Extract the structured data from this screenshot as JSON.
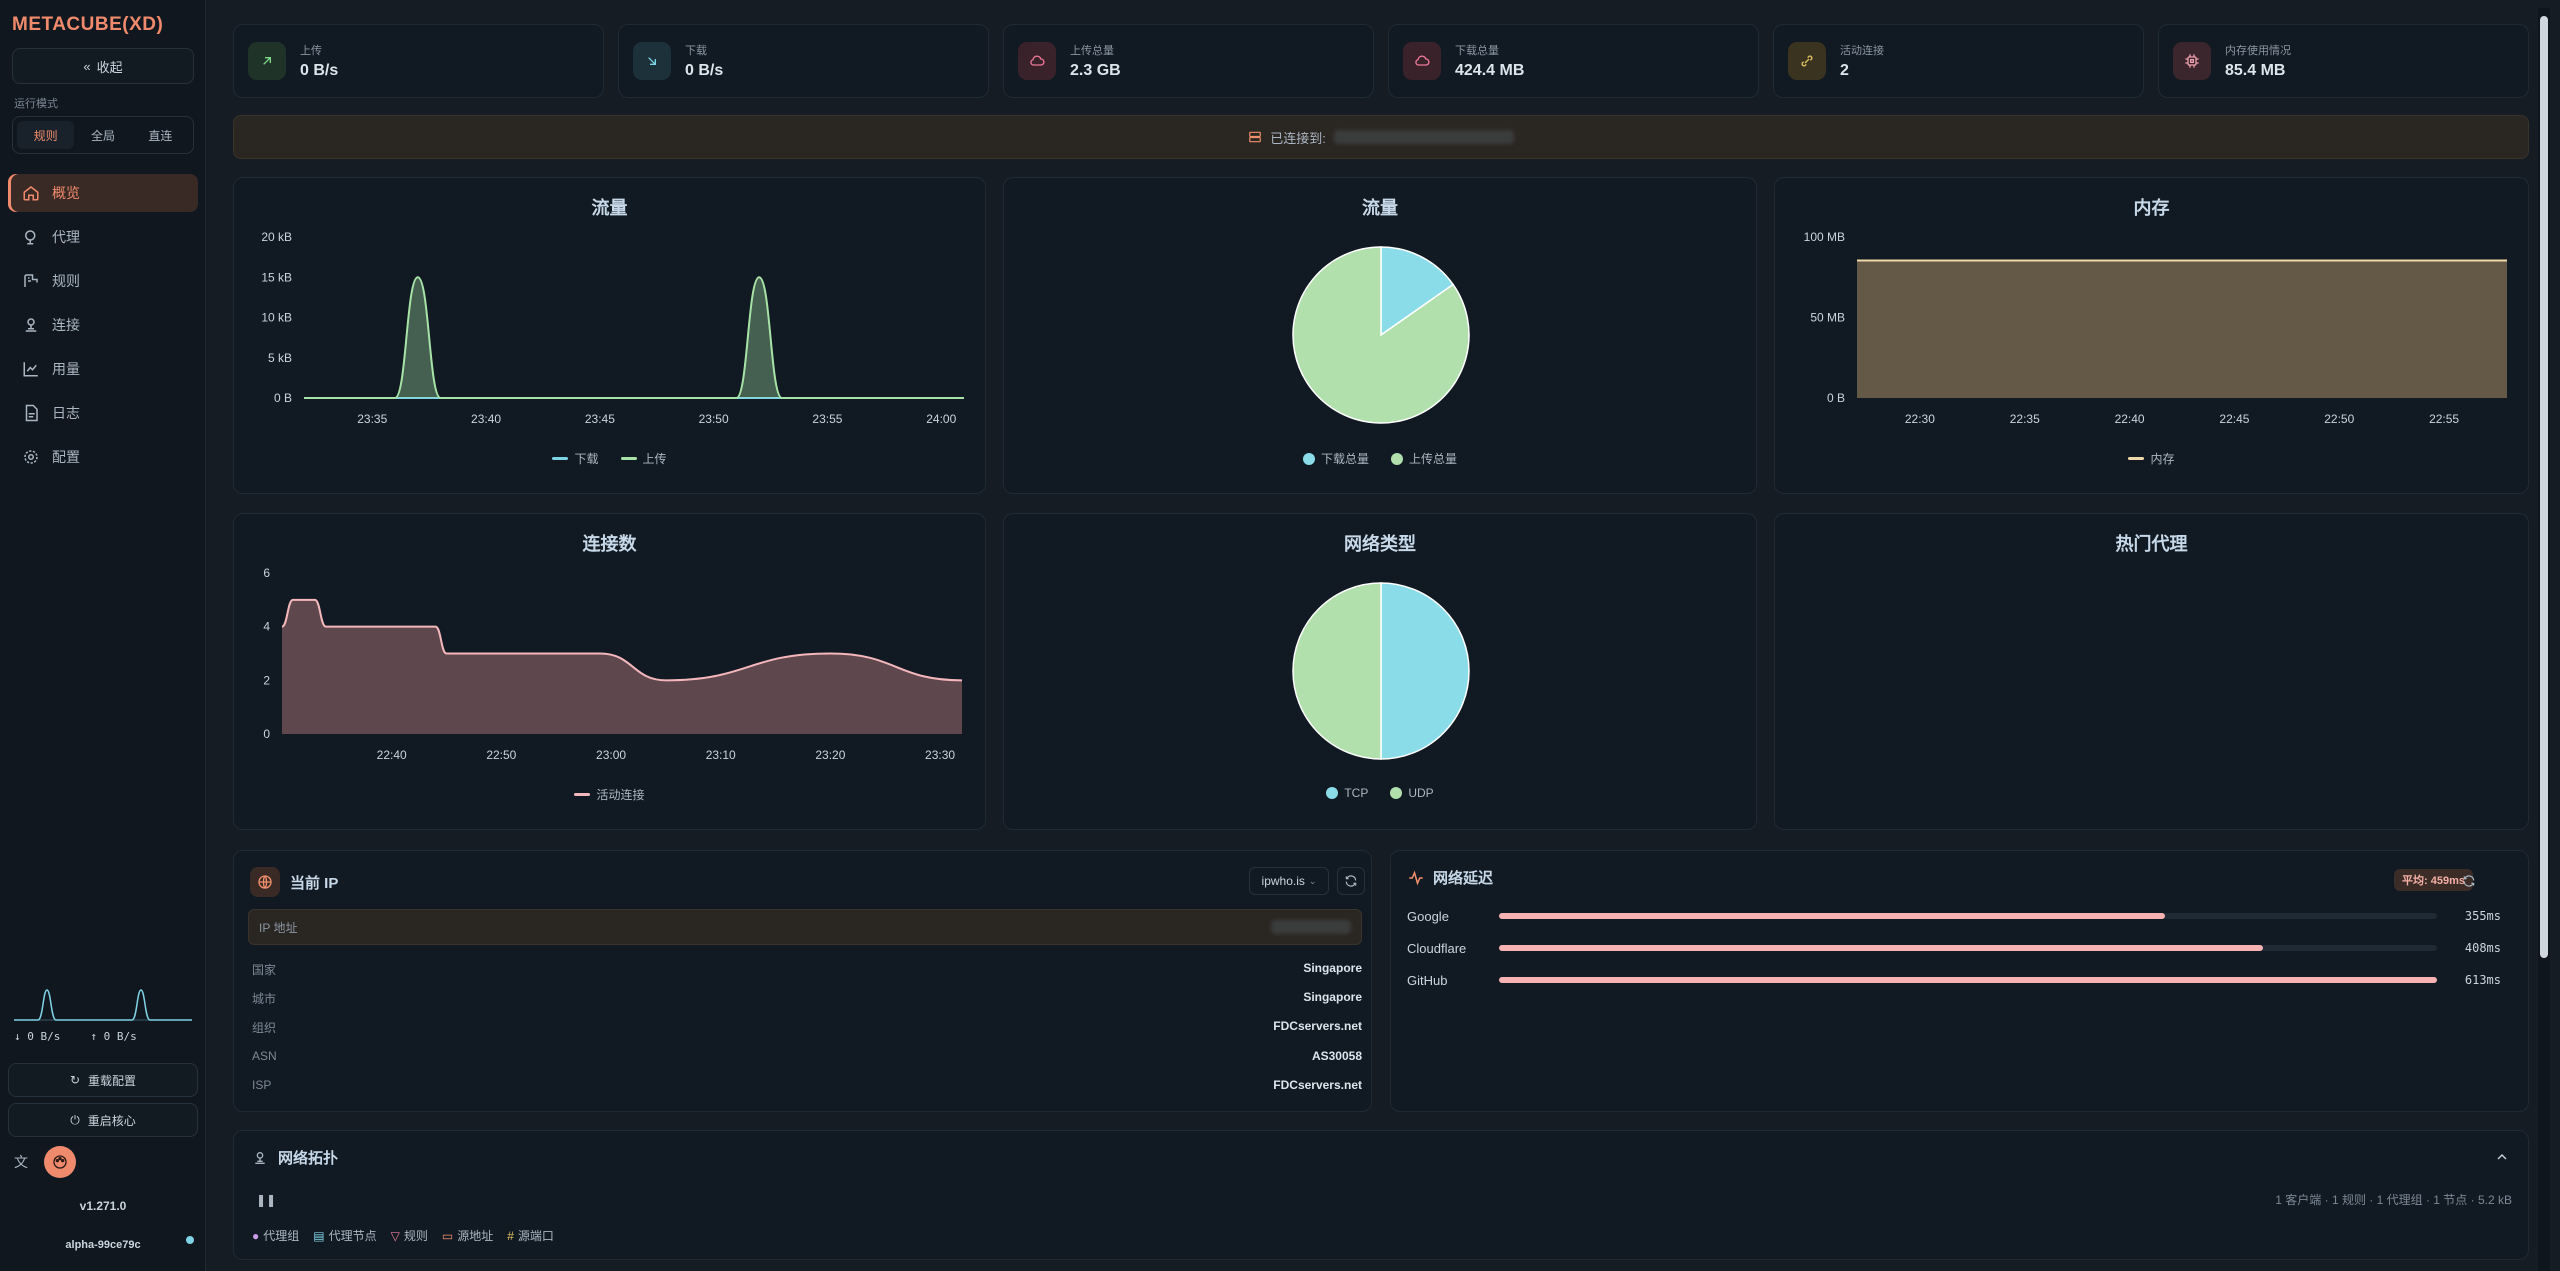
{
  "sidebar": {
    "logo": "METACUBE(XD)",
    "collapse_label": "收起",
    "mode_label": "运行模式",
    "modes": [
      {
        "label": "规则",
        "active": true
      },
      {
        "label": "全局",
        "active": false
      },
      {
        "label": "直连",
        "active": false
      }
    ],
    "nav": [
      {
        "label": "概览",
        "icon": "home-icon",
        "active": true
      },
      {
        "label": "代理",
        "icon": "globe-icon",
        "active": false
      },
      {
        "label": "规则",
        "icon": "route-icon",
        "active": false
      },
      {
        "label": "连接",
        "icon": "network-icon",
        "active": false
      },
      {
        "label": "用量",
        "icon": "area-chart-icon",
        "active": false
      },
      {
        "label": "日志",
        "icon": "file-icon",
        "active": false
      },
      {
        "label": "配置",
        "icon": "gear-icon",
        "active": false
      }
    ],
    "down_speed": "↓ 0 B/s",
    "up_speed": "↑ 0 B/s",
    "reload_config": "重载配置",
    "restart_core": "重启核心",
    "version": "v1.271.0",
    "core_version": "alpha-99ce79c"
  },
  "stats": [
    {
      "label": "上传",
      "value": "0 B/s",
      "icon": "arrow-up-right-icon",
      "color": "#7fd88a"
    },
    {
      "label": "下载",
      "value": "0 B/s",
      "icon": "arrow-down-right-icon",
      "color": "#7fd3e6"
    },
    {
      "label": "上传总量",
      "value": "2.3 GB",
      "icon": "cloud-upload-icon",
      "color": "#f07a9a"
    },
    {
      "label": "下载总量",
      "value": "424.4 MB",
      "icon": "cloud-download-icon",
      "color": "#f07a9a"
    },
    {
      "label": "活动连接",
      "value": "2",
      "icon": "link-icon",
      "color": "#e0c060"
    },
    {
      "label": "内存使用情况",
      "value": "85.4 MB",
      "icon": "cpu-icon",
      "color": "#f0a0b0"
    }
  ],
  "connected": {
    "label": "已连接到:"
  },
  "panels": {
    "traffic_line_title": "流量",
    "traffic_pie_title": "流量",
    "memory_title": "内存",
    "connections_title": "连接数",
    "network_type_title": "网络类型",
    "top_proxies_title": "热门代理"
  },
  "chart_data": [
    {
      "type": "area",
      "title": "流量",
      "x_ticks": [
        "23:35",
        "23:40",
        "23:45",
        "23:50",
        "23:55",
        "24:00"
      ],
      "y_ticks": [
        "20 kB",
        "15 kB",
        "10 kB",
        "5 kB",
        "0 B"
      ],
      "ylim": [
        0,
        20
      ],
      "y_unit": "kB",
      "x": [
        "23:32",
        "23:36",
        "23:37",
        "23:38",
        "23:51",
        "23:52",
        "23:53",
        "24:01"
      ],
      "series": [
        {
          "name": "下载",
          "color": "#7fd3e6",
          "values": [
            0,
            0,
            0,
            0,
            0,
            0,
            0,
            0
          ]
        },
        {
          "name": "上传",
          "color": "#a7e3a6",
          "values": [
            0,
            0,
            15,
            0,
            0,
            15,
            0,
            0
          ]
        }
      ],
      "legend": "bottom"
    },
    {
      "type": "pie",
      "title": "流量",
      "labels": [
        "下载总量",
        "上传总量"
      ],
      "values": [
        424.4,
        2355
      ],
      "colors": [
        "#8adce8",
        "#b1e0ac"
      ],
      "legend": "bottom"
    },
    {
      "type": "area",
      "title": "内存",
      "x_ticks": [
        "22:30",
        "22:35",
        "22:40",
        "22:45",
        "22:50",
        "22:55"
      ],
      "y_ticks": [
        "100 MB",
        "50 MB",
        "0 B"
      ],
      "ylim": [
        0,
        100
      ],
      "x": [
        "22:27",
        "22:58"
      ],
      "series": [
        {
          "name": "内存",
          "color": "#f0d9a8",
          "values": [
            85.4,
            85.4
          ]
        }
      ],
      "legend": "bottom"
    },
    {
      "type": "area",
      "title": "连接数",
      "x_ticks": [
        "22:40",
        "22:50",
        "23:00",
        "23:10",
        "23:20",
        "23:30"
      ],
      "y_ticks": [
        "6",
        "4",
        "2",
        "0"
      ],
      "ylim": [
        0,
        6
      ],
      "x": [
        "22:30",
        "22:31",
        "22:33",
        "22:34",
        "22:44",
        "22:45",
        "22:59",
        "23:05",
        "23:20",
        "23:32"
      ],
      "series": [
        {
          "name": "活动连接",
          "color": "#f4b8bc",
          "values": [
            4,
            5,
            5,
            4,
            4,
            3,
            3,
            2,
            3,
            2
          ]
        }
      ],
      "legend": "bottom"
    },
    {
      "type": "pie",
      "title": "网络类型",
      "labels": [
        "TCP",
        "UDP"
      ],
      "values": [
        1,
        1
      ],
      "colors": [
        "#8adce8",
        "#b1e0ac"
      ],
      "legend": "bottom"
    }
  ],
  "ip": {
    "title": "当前 IP",
    "source": "ipwho.is",
    "address_label": "IP 地址",
    "rows": [
      {
        "key": "国家",
        "value": "Singapore"
      },
      {
        "key": "城市",
        "value": "Singapore"
      },
      {
        "key": "组织",
        "value": "FDCservers.net"
      },
      {
        "key": "ASN",
        "value": "AS30058"
      },
      {
        "key": "ISP",
        "value": "FDCservers.net"
      }
    ]
  },
  "latency": {
    "title": "网络延迟",
    "average": "平均: 459ms",
    "rows": [
      {
        "name": "Google",
        "ms": "355ms",
        "fraction": 0.71
      },
      {
        "name": "Cloudflare",
        "ms": "408ms",
        "fraction": 0.815
      },
      {
        "name": "GitHub",
        "ms": "613ms",
        "fraction": 1.0
      }
    ]
  },
  "topology": {
    "title": "网络拓扑",
    "stats": "1 客户端 · 1 规则 · 1 代理组 · 1 节点 · 5.2 kB",
    "legend": [
      {
        "label": "代理组",
        "color": "#c79be6"
      },
      {
        "label": "代理节点",
        "color": "#7fd3e6"
      },
      {
        "label": "规则",
        "color": "#f07a9a"
      },
      {
        "label": "源地址",
        "color": "#f0906c"
      },
      {
        "label": "源端口",
        "color": "#e0c060"
      }
    ]
  }
}
